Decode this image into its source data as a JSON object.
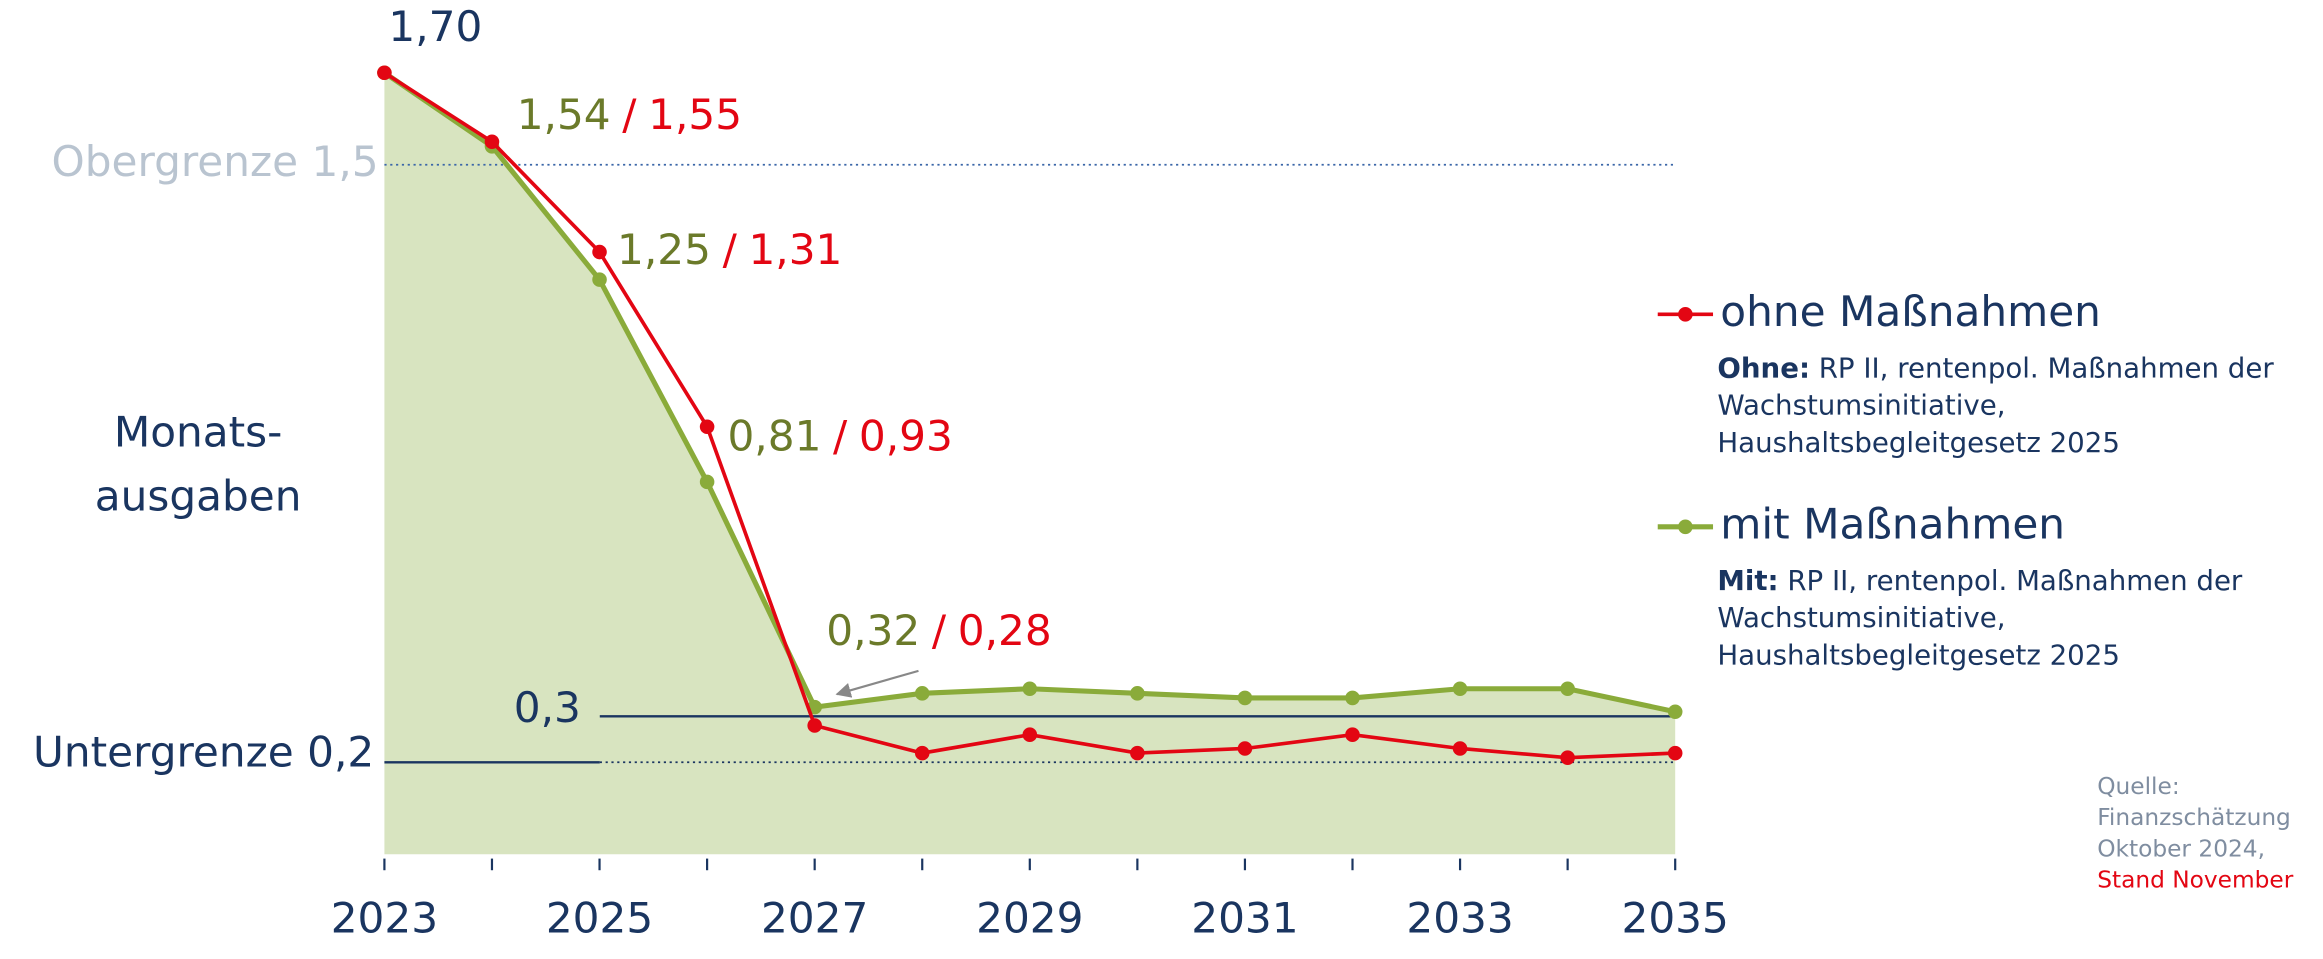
{
  "chart_data": {
    "type": "line",
    "ylabel": [
      "Monats-",
      "ausgaben"
    ],
    "x": [
      2023,
      2024,
      2025,
      2026,
      2027,
      2028,
      2029,
      2030,
      2031,
      2032,
      2033,
      2034,
      2035
    ],
    "xlim": [
      2023,
      2035
    ],
    "xticks": [
      2023,
      2025,
      2027,
      2029,
      2031,
      2033,
      2035
    ],
    "ylim": [
      0,
      1.7
    ],
    "label_separator": "/",
    "series": [
      {
        "name": "ohne Maßnahmen",
        "color": "#e30613",
        "values": [
          1.7,
          1.55,
          1.31,
          0.93,
          0.28,
          0.22,
          0.26,
          0.22,
          0.23,
          0.26,
          0.23,
          0.21,
          0.22
        ],
        "value_labels": [
          "1,70",
          "1,55",
          "1,31",
          "0,93",
          "0,28",
          null,
          null,
          null,
          null,
          null,
          null,
          null,
          null
        ],
        "note_label": "Ohne:",
        "note_lines": [
          "RP II, rentenpol. Maßnahmen der",
          "Wachstumsinitiative,",
          "Haushaltsbegleitgesetz 2025"
        ]
      },
      {
        "name": "mit Maßnahmen",
        "color": "#8aab3a",
        "fill": "#d8e4c0",
        "values": [
          1.7,
          1.54,
          1.25,
          0.81,
          0.32,
          0.35,
          0.36,
          0.35,
          0.34,
          0.34,
          0.36,
          0.36,
          0.31
        ],
        "value_labels": [
          null,
          "1,54",
          "1,25",
          "0,81",
          "0,32",
          null,
          null,
          null,
          null,
          null,
          null,
          null,
          null
        ],
        "note_label": "Mit:",
        "note_lines": [
          "RP II, rentenpol. Maßnahmen der",
          "Wachstumsinitiative,",
          "Haushaltsbegleitgesetz 2025"
        ]
      }
    ],
    "reference_lines": [
      {
        "label": "Obergrenze 1,5",
        "value": 1.5
      },
      {
        "label": "0,3",
        "value": 0.3
      },
      {
        "label": "Untergrenze 0,2",
        "value": 0.2
      }
    ],
    "source": [
      "Quelle:",
      "Finanzschätzung",
      "Oktober 2024,",
      "Stand November"
    ]
  }
}
